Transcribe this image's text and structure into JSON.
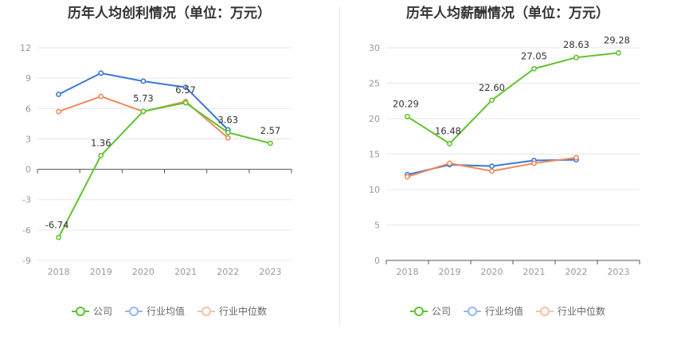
{
  "chart_data": [
    {
      "type": "line",
      "title": "历年人均创利情况（单位：万元）",
      "categories": [
        "2018",
        "2019",
        "2020",
        "2021",
        "2022",
        "2023"
      ],
      "ylim": [
        -9,
        12
      ],
      "yticks": [
        "12",
        "9",
        "6",
        "3",
        "0",
        "-3",
        "-6",
        "-9"
      ],
      "ytick_values": [
        12,
        9,
        6,
        3,
        0,
        -3,
        -6,
        -9
      ],
      "series": [
        {
          "name": "公司",
          "color": "#5ec42d",
          "values": [
            -6.74,
            1.36,
            5.73,
            6.57,
            3.63,
            2.57
          ],
          "labels": [
            "-6.74",
            "1.36",
            "5.73",
            "6.57",
            "3.63",
            "2.57"
          ]
        },
        {
          "name": "行业均值",
          "color": "#3a78d8",
          "values": [
            7.4,
            9.5,
            8.7,
            8.1,
            3.9,
            null
          ]
        },
        {
          "name": "行业中位数",
          "color": "#ef8a5a",
          "values": [
            5.7,
            7.2,
            5.7,
            6.7,
            3.1,
            null
          ]
        }
      ],
      "grid": true,
      "legend_position": "bottom"
    },
    {
      "type": "line",
      "title": "历年人均薪酬情况（单位：万元）",
      "categories": [
        "2018",
        "2019",
        "2020",
        "2021",
        "2022",
        "2023"
      ],
      "ylim": [
        0,
        30
      ],
      "yticks": [
        "30",
        "25",
        "20",
        "15",
        "10",
        "5",
        "0"
      ],
      "ytick_values": [
        30,
        25,
        20,
        15,
        10,
        5,
        0
      ],
      "series": [
        {
          "name": "公司",
          "color": "#5ec42d",
          "values": [
            20.29,
            16.48,
            22.6,
            27.05,
            28.63,
            29.28
          ],
          "labels": [
            "20.29",
            "16.48",
            "22.60",
            "27.05",
            "28.63",
            "29.28"
          ]
        },
        {
          "name": "行业均值",
          "color": "#3a78d8",
          "values": [
            12.1,
            13.5,
            13.3,
            14.1,
            14.2,
            null
          ]
        },
        {
          "name": "行业中位数",
          "color": "#ef8a5a",
          "values": [
            11.8,
            13.7,
            12.6,
            13.7,
            14.5,
            null
          ]
        }
      ],
      "grid": true,
      "legend_position": "bottom"
    }
  ]
}
